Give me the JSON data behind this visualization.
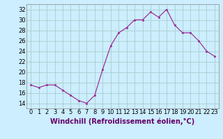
{
  "x": [
    0,
    1,
    2,
    3,
    4,
    5,
    6,
    7,
    8,
    9,
    10,
    11,
    12,
    13,
    14,
    15,
    16,
    17,
    18,
    19,
    20,
    21,
    22,
    23
  ],
  "y": [
    17.5,
    17.0,
    17.5,
    17.5,
    16.5,
    15.5,
    14.5,
    14.0,
    15.5,
    20.5,
    25.0,
    27.5,
    28.5,
    30.0,
    30.0,
    31.5,
    30.5,
    32.0,
    29.0,
    27.5,
    27.5,
    26.0,
    24.0,
    23.0
  ],
  "line_color": "#993399",
  "marker_color": "#993399",
  "bg_color": "#cceeff",
  "grid_color": "#aacccc",
  "xlabel": "Windchill (Refroidissement éolien,°C)",
  "xlim": [
    -0.5,
    23.5
  ],
  "ylim": [
    13,
    33
  ],
  "yticks": [
    14,
    16,
    18,
    20,
    22,
    24,
    26,
    28,
    30,
    32
  ],
  "xticks": [
    0,
    1,
    2,
    3,
    4,
    5,
    6,
    7,
    8,
    9,
    10,
    11,
    12,
    13,
    14,
    15,
    16,
    17,
    18,
    19,
    20,
    21,
    22,
    23
  ],
  "tick_label_fontsize": 6.0,
  "xlabel_fontsize": 7.0
}
